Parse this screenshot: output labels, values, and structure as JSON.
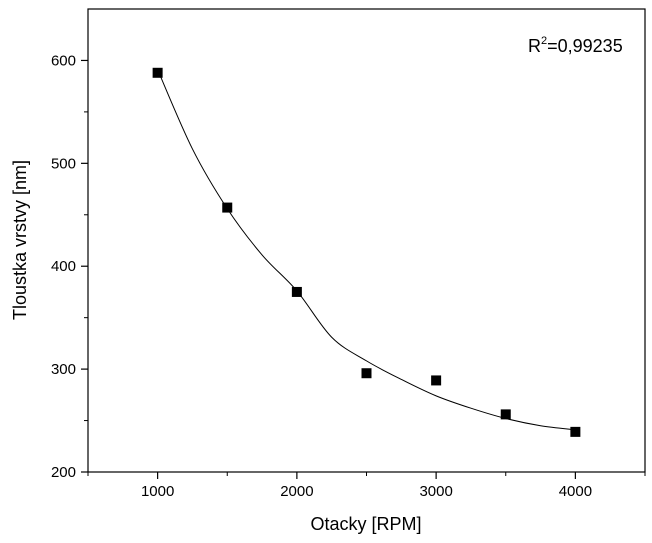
{
  "chart_data": {
    "type": "scatter",
    "title": "",
    "xlabel": "Otacky [RPM]",
    "ylabel": "Tloustka vrstvy [nm]",
    "xlim": [
      500,
      4500
    ],
    "ylim": [
      200,
      650
    ],
    "x_ticks": [
      1000,
      2000,
      3000,
      4000
    ],
    "x_minor_ticks": [
      500,
      1500,
      2500,
      3500,
      4500
    ],
    "y_ticks": [
      200,
      300,
      400,
      500,
      600
    ],
    "y_minor_ticks": [
      250,
      350,
      450,
      550
    ],
    "grid": false,
    "legend": "none",
    "series": [
      {
        "x": [
          1000,
          1500,
          2000,
          2500,
          3000,
          3500,
          4000
        ],
        "y": [
          588,
          457,
          375,
          296,
          289,
          256,
          239
        ],
        "marker": "square",
        "color": "#000000"
      }
    ],
    "fit_curve": {
      "type": "exponential decay",
      "color": "#000000",
      "x": [
        1000,
        1250,
        1500,
        1750,
        2000,
        2250,
        2500,
        2750,
        3000,
        3250,
        3500,
        3750,
        4000
      ],
      "y": [
        591,
        514,
        456,
        411,
        376,
        331,
        308,
        290,
        274,
        262,
        252,
        245,
        241
      ]
    },
    "annotation": {
      "prefix": "R",
      "superscript": "2",
      "suffix": "=0,99235"
    }
  }
}
